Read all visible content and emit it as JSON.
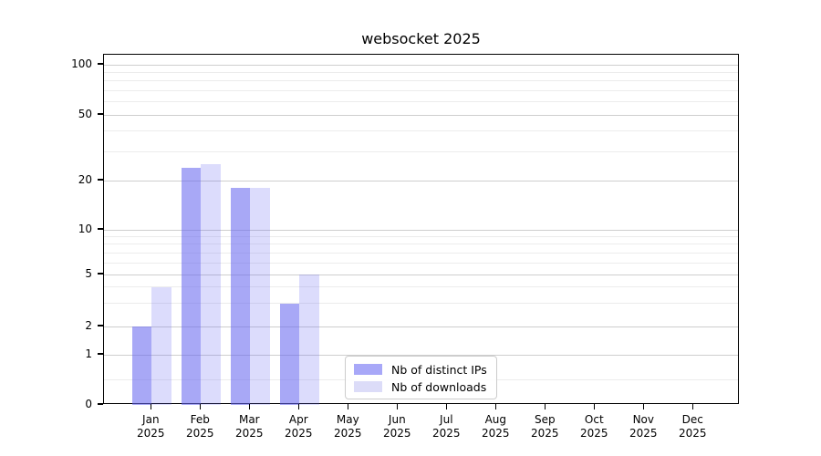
{
  "title": "websocket 2025",
  "chart_data": {
    "type": "bar",
    "title": "websocket 2025",
    "x_months": [
      "Jan",
      "Feb",
      "Mar",
      "Apr",
      "May",
      "Jun",
      "Jul",
      "Aug",
      "Sep",
      "Oct",
      "Nov",
      "Dec"
    ],
    "x_year": "2025",
    "y_ticks": [
      0,
      1,
      2,
      5,
      10,
      20,
      50,
      100
    ],
    "y_minor_ticks": [
      0.5,
      3,
      4,
      6,
      7,
      8,
      9,
      30,
      40,
      60,
      70,
      80,
      90
    ],
    "yscale": "log above 1, linear 0-1 (symlog-like)",
    "ylim": [
      0,
      120
    ],
    "grid": true,
    "series": [
      {
        "name": "Nb of distinct IPs",
        "color": "#a8a8f8",
        "color_rgba": "rgba(102,102,240,0.57)",
        "values": [
          2,
          24,
          18,
          3,
          0,
          0,
          0,
          0,
          0,
          0,
          0,
          0
        ]
      },
      {
        "name": "Nb of downloads",
        "color": "#dcdcf8",
        "color_rgba": "rgba(102,102,240,0.23)",
        "values": [
          4,
          25,
          18,
          5,
          0,
          0,
          0,
          0,
          0,
          0,
          0,
          0
        ]
      }
    ],
    "legend": {
      "position": "inside bottom, center-right",
      "entries": [
        "Nb of distinct IPs",
        "Nb of downloads"
      ]
    }
  }
}
